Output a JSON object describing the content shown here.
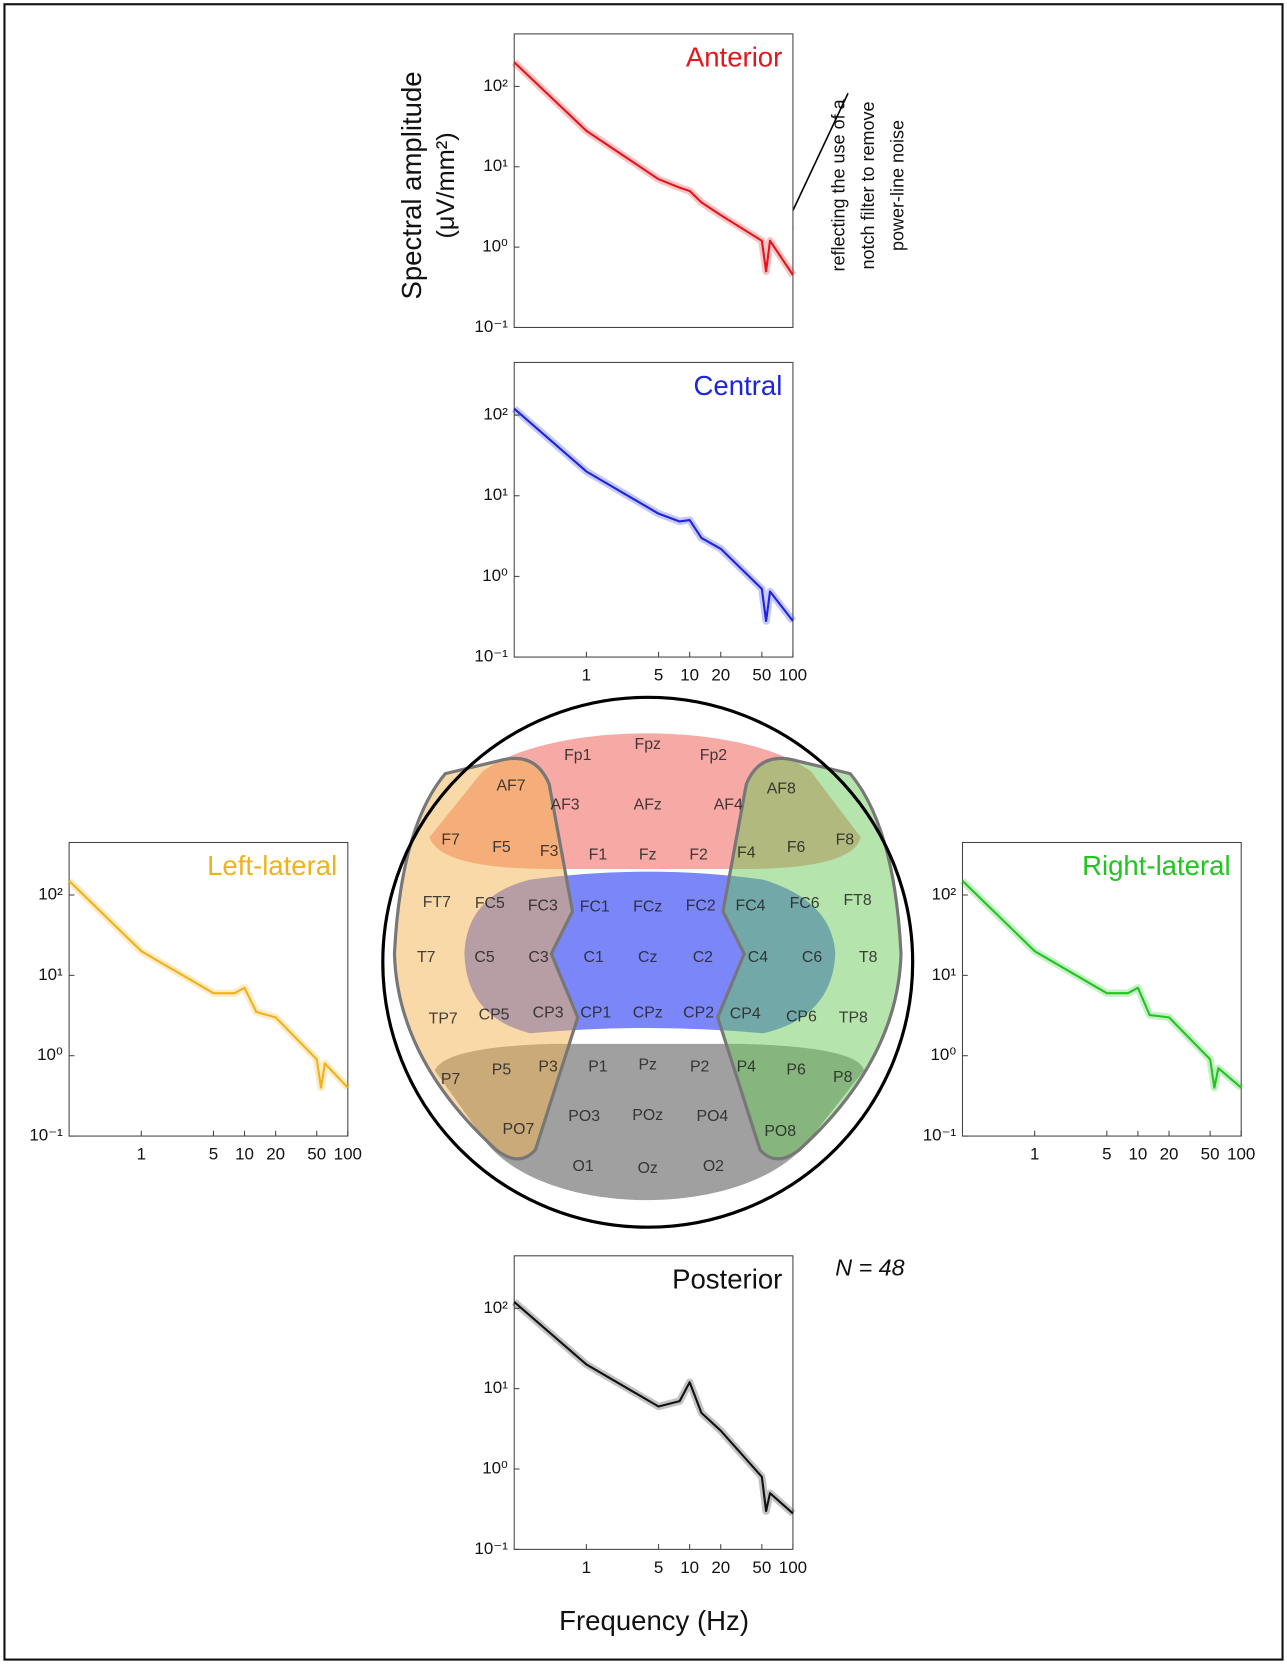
{
  "chart_data": [
    {
      "type": "line",
      "title": "Anterior",
      "color": "#e3161c",
      "x": [
        0.2,
        1,
        5,
        8,
        10,
        13,
        20,
        50,
        55,
        60,
        100
      ],
      "values": [
        200,
        28,
        7,
        5.5,
        5,
        3.6,
        2.5,
        1.2,
        0.5,
        1.2,
        0.45
      ],
      "xscale": "log",
      "yscale": "log",
      "xlim": [
        0.2,
        100
      ],
      "ylim": [
        0.1,
        450
      ],
      "yticks": [
        {
          "value": 0.1,
          "label": "10⁻¹"
        },
        {
          "value": 1,
          "label": "10⁰"
        },
        {
          "value": 10,
          "label": "10¹"
        },
        {
          "value": 100,
          "label": "10²"
        }
      ]
    },
    {
      "type": "line",
      "title": "Central",
      "color": "#1c24dc",
      "x": [
        0.2,
        1,
        5,
        8,
        10,
        13,
        20,
        50,
        55,
        60,
        100
      ],
      "values": [
        120,
        20,
        6,
        4.8,
        5,
        3,
        2.2,
        0.7,
        0.28,
        0.65,
        0.28
      ],
      "xscale": "log",
      "yscale": "log",
      "xlim": [
        0.2,
        100
      ],
      "ylim": [
        0.1,
        450
      ],
      "xticks": [
        1,
        5,
        10,
        20,
        50,
        100
      ],
      "yticks": [
        {
          "value": 0.1,
          "label": "10⁻¹"
        },
        {
          "value": 1,
          "label": "10⁰"
        },
        {
          "value": 10,
          "label": "10¹"
        },
        {
          "value": 100,
          "label": "10²"
        }
      ]
    },
    {
      "type": "line",
      "title": "Left-lateral",
      "color": "#f0b21c",
      "x": [
        0.2,
        1,
        5,
        8,
        10,
        13,
        20,
        50,
        55,
        60,
        100
      ],
      "values": [
        150,
        20,
        6,
        6,
        7,
        3.5,
        3,
        0.9,
        0.4,
        0.8,
        0.4
      ],
      "xscale": "log",
      "yscale": "log",
      "xlim": [
        0.2,
        100
      ],
      "ylim": [
        0.1,
        450
      ],
      "xticks": [
        1,
        5,
        10,
        20,
        50,
        100
      ],
      "yticks": [
        {
          "value": 0.1,
          "label": "10⁻¹"
        },
        {
          "value": 1,
          "label": "10⁰"
        },
        {
          "value": 10,
          "label": "10¹"
        },
        {
          "value": 100,
          "label": "10²"
        }
      ]
    },
    {
      "type": "line",
      "title": "Right-lateral",
      "color": "#22c422",
      "x": [
        0.2,
        1,
        5,
        8,
        10,
        13,
        20,
        50,
        55,
        60,
        100
      ],
      "values": [
        150,
        20,
        6,
        6,
        7,
        3.2,
        3,
        0.9,
        0.4,
        0.7,
        0.4
      ],
      "xscale": "log",
      "yscale": "log",
      "xlim": [
        0.2,
        100
      ],
      "ylim": [
        0.1,
        450
      ],
      "xticks": [
        1,
        5,
        10,
        20,
        50,
        100
      ],
      "yticks": [
        {
          "value": 0.1,
          "label": "10⁻¹"
        },
        {
          "value": 1,
          "label": "10⁰"
        },
        {
          "value": 10,
          "label": "10¹"
        },
        {
          "value": 100,
          "label": "10²"
        }
      ]
    },
    {
      "type": "line",
      "title": "Posterior",
      "color": "#111111",
      "x": [
        0.2,
        1,
        5,
        8,
        10,
        13,
        20,
        50,
        55,
        60,
        100
      ],
      "values": [
        120,
        20,
        6,
        7,
        12,
        5,
        3,
        0.8,
        0.3,
        0.5,
        0.28
      ],
      "xscale": "log",
      "yscale": "log",
      "xlim": [
        0.2,
        100
      ],
      "ylim": [
        0.1,
        450
      ],
      "xticks": [
        1,
        5,
        10,
        20,
        50,
        100
      ],
      "yticks": [
        {
          "value": 0.1,
          "label": "10⁻¹"
        },
        {
          "value": 1,
          "label": "10⁰"
        },
        {
          "value": 10,
          "label": "10¹"
        },
        {
          "value": 100,
          "label": "10²"
        }
      ]
    }
  ],
  "ylabel_lines": [
    "Spectral amplitude",
    "(μV/mm²)"
  ],
  "xlabel": "Frequency (Hz)",
  "annotation_lines": [
    "reflecting the use of a",
    "notch filter to remove",
    "power-line noise"
  ],
  "sample_size": "N = 48",
  "head_map": {
    "electrodes": [
      "Fp1",
      "Fpz",
      "Fp2",
      "AF7",
      "AF3",
      "AFz",
      "AF4",
      "AF8",
      "F7",
      "F5",
      "F3",
      "F1",
      "Fz",
      "F2",
      "F4",
      "F6",
      "F8",
      "FT7",
      "FC5",
      "FC3",
      "FC1",
      "FCz",
      "FC2",
      "FC4",
      "FC6",
      "FT8",
      "T7",
      "C5",
      "C3",
      "C1",
      "Cz",
      "C2",
      "C4",
      "C6",
      "T8",
      "TP7",
      "CP5",
      "CP3",
      "CP1",
      "CPz",
      "CP2",
      "CP4",
      "CP6",
      "TP8",
      "P7",
      "P5",
      "P3",
      "P1",
      "Pz",
      "P2",
      "P4",
      "P6",
      "P8",
      "PO7",
      "PO3",
      "POz",
      "PO4",
      "PO8",
      "O1",
      "Oz",
      "O2"
    ]
  }
}
